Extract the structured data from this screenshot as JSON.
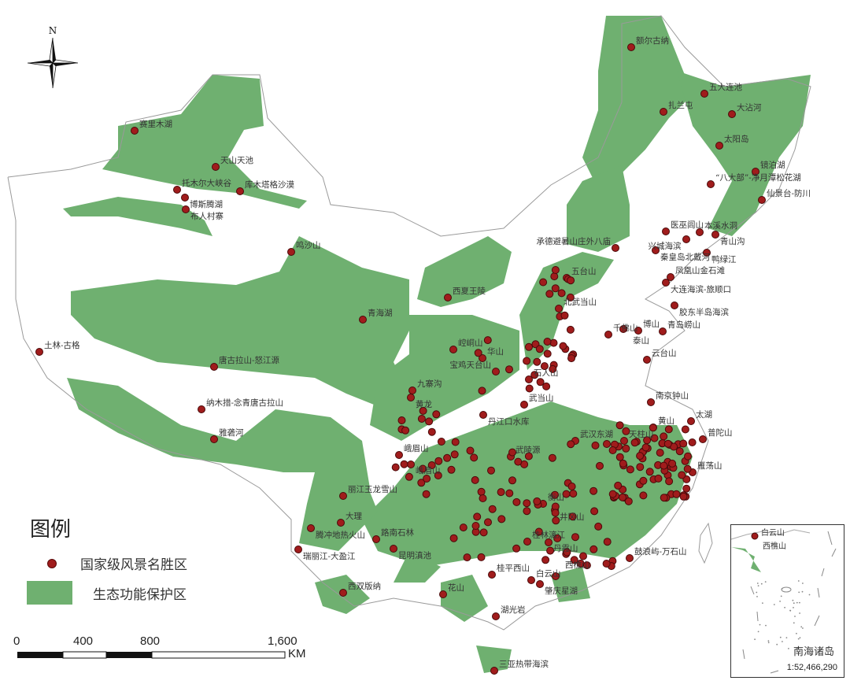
{
  "map": {
    "north_label": "N",
    "colors": {
      "protection_zone": "#6fb070",
      "scenic_dot": "#a01c1c",
      "boundary": "#9a9a9a"
    },
    "scenic_areas": [
      "赛里木湖",
      "天山天池",
      "托木尔大峡谷",
      "博斯腾湖",
      "布人村寨",
      "库木塔格沙漠",
      "鸣沙山",
      "青海湖",
      "土林-古格",
      "唐古拉山-怒江源",
      "纳木措-念青唐古拉山",
      "雅砻河",
      "额尔古纳",
      "五大连池",
      "扎兰屯",
      "大沾河",
      "太阳岛",
      "镜泊湖",
      "“八大部”-净月潭松花湖",
      "仙景台-防川",
      "医巫闾山",
      "本溪水洞",
      "青山沟",
      "兴城海滨",
      "鸭绿江",
      "承德避暑山庄外八庙",
      "秦皇岛北戴河",
      "凤凰山金石滩",
      "大连海滨-旅顺口",
      "胶东半岛海滨",
      "西夏王陵",
      "青岛崂山",
      "云台山",
      "千佛山",
      "泰山",
      "博山",
      "五台山",
      "北武当山",
      "崆峒山",
      "九寨沟",
      "黄龙",
      "峨眉山",
      "武当山",
      "武汉东湖",
      "天柱山",
      "黄山",
      "太湖",
      "普陀山",
      "南京钟山",
      "雁荡山",
      "鼓浪屿-万石山",
      "桂林漓江",
      "丹霞山",
      "三亚热带海滨",
      "西双版纳",
      "路南石林",
      "昆明滇池",
      "丽江玉龙雪山",
      "大理",
      "腾冲地热火山",
      "瑞丽江-大盈江",
      "白云山",
      "西樵山",
      "肇庆星湖",
      "湖光岩",
      "桂平西山",
      "花山",
      "衡山",
      "武陵源",
      "井冈山",
      "华山",
      "石人山",
      "丹江口水库",
      "宝鸡天台山",
      "峨眉山"
    ]
  },
  "legend": {
    "title": "图例",
    "items": [
      {
        "label": "国家级风景名胜区",
        "symbol": "red-dot"
      },
      {
        "label": "生态功能保护区",
        "symbol": "green-area"
      }
    ]
  },
  "scale_bar": {
    "ticks": [
      "0",
      "400",
      "800",
      "1,600"
    ],
    "unit": "KM"
  },
  "inset": {
    "title": "南海诸岛",
    "scale": "1:52,466,290",
    "labels": [
      "白云山",
      "西樵山"
    ]
  }
}
